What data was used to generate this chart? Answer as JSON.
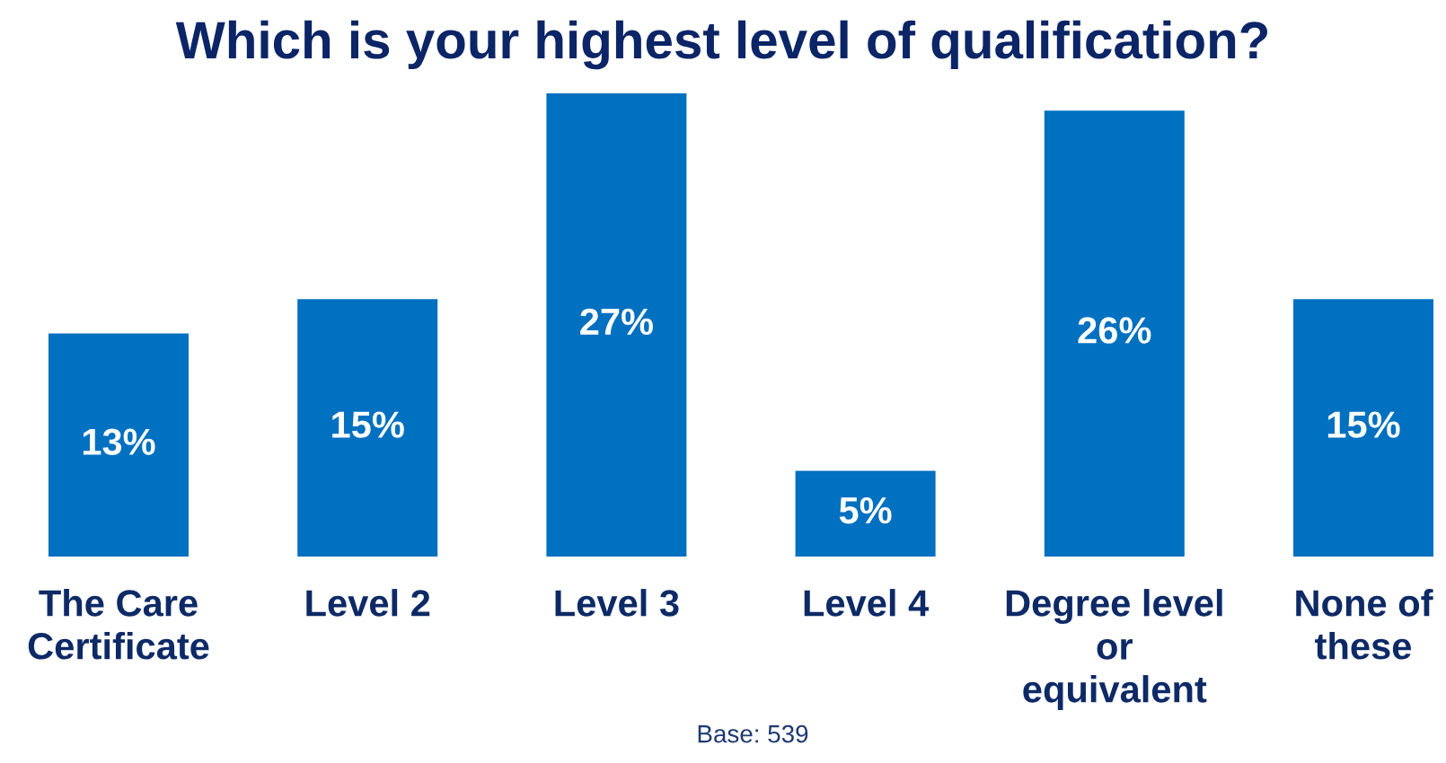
{
  "chart_data": {
    "type": "bar",
    "title": "Which is your highest level of qualification?",
    "categories": [
      "The Care\nCertificate",
      "Level 2",
      "Level 3",
      "Level 4",
      "Degree level\nor\nequivalent",
      "None of\nthese"
    ],
    "values": [
      13,
      15,
      27,
      5,
      26,
      15
    ],
    "color": "#0070c0",
    "value_labels": [
      "13%",
      "15%",
      "27%",
      "5%",
      "26%",
      "15%"
    ],
    "annotations": [
      "Base: 539"
    ]
  }
}
